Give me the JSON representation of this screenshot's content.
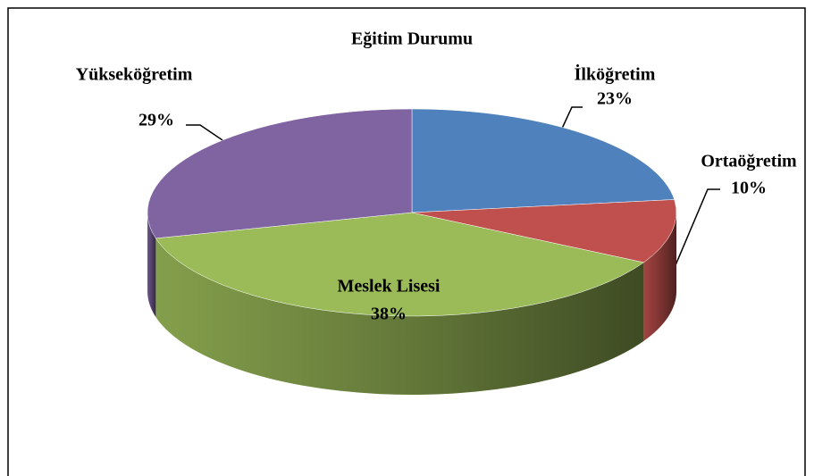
{
  "chart_data": {
    "type": "pie",
    "title": "Eğitim Durumu",
    "categories": [
      "İlköğretim",
      "Ortaöğretim",
      "Meslek Lisesi",
      "Yükseköğretim"
    ],
    "values": [
      23,
      10,
      38,
      29
    ],
    "value_labels": [
      "23%",
      "10%",
      "38%",
      "29%"
    ],
    "colors": [
      "#4f81bd",
      "#c0504d",
      "#9bbb59",
      "#8064a2"
    ]
  }
}
